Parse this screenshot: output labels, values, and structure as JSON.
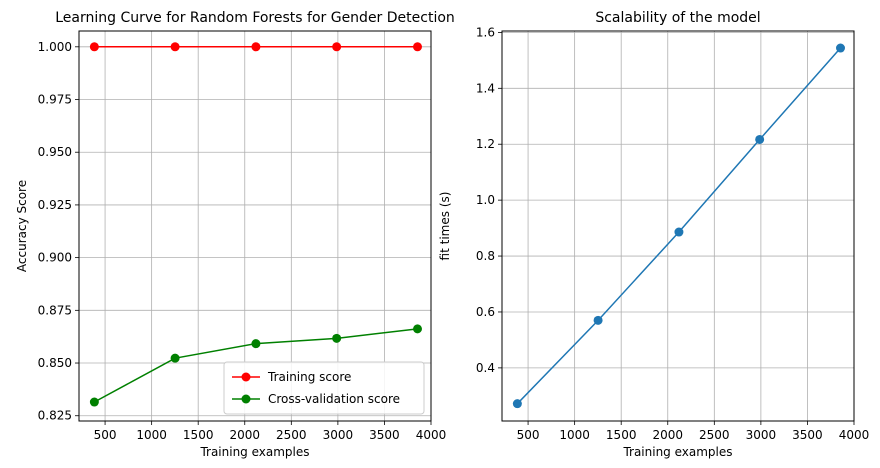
{
  "chart_data": [
    {
      "type": "line",
      "title": "Learning Curve for Random Forests for Gender Detection",
      "xlabel": "Training examples",
      "ylabel": "Accuracy Score",
      "xlim": [
        220,
        4000
      ],
      "ylim": [
        0.8225,
        1.0075
      ],
      "xticks": [
        500,
        1000,
        1500,
        2000,
        2500,
        3000,
        3500,
        4000
      ],
      "xtick_labels": [
        "500",
        "1000",
        "1500",
        "2000",
        "2500",
        "3000",
        "3500",
        "4000"
      ],
      "yticks": [
        0.825,
        0.85,
        0.875,
        0.9,
        0.925,
        0.95,
        0.975,
        1.0
      ],
      "ytick_labels": [
        "0.825",
        "0.850",
        "0.875",
        "0.900",
        "0.925",
        "0.950",
        "0.975",
        "1.000"
      ],
      "grid": true,
      "legend": "lower-right",
      "x": [
        385,
        1252,
        2120,
        2987,
        3855
      ],
      "series": [
        {
          "name": "Training score",
          "color": "#ff0000",
          "values": [
            1.0,
            1.0,
            1.0,
            1.0,
            1.0
          ]
        },
        {
          "name": "Cross-validation score",
          "color": "#008000",
          "values": [
            0.8315,
            0.8523,
            0.8592,
            0.8617,
            0.8662
          ]
        }
      ]
    },
    {
      "type": "line",
      "title": "Scalability of the model",
      "xlabel": "Training examples",
      "ylabel": "fit times (s)",
      "xlim": [
        220,
        4000
      ],
      "ylim": [
        0.21,
        1.605
      ],
      "xticks": [
        500,
        1000,
        1500,
        2000,
        2500,
        3000,
        3500,
        4000
      ],
      "xtick_labels": [
        "500",
        "1000",
        "1500",
        "2000",
        "2500",
        "3000",
        "3500",
        "4000"
      ],
      "yticks": [
        0.4,
        0.6,
        0.8,
        1.0,
        1.2,
        1.4,
        1.6
      ],
      "ytick_labels": [
        "0.4",
        "0.6",
        "0.8",
        "1.0",
        "1.2",
        "1.4",
        "1.6"
      ],
      "grid": true,
      "x": [
        385,
        1252,
        2120,
        2987,
        3855
      ],
      "series": [
        {
          "color": "#1f77b4",
          "values": [
            0.272,
            0.57,
            0.886,
            1.217,
            1.544
          ]
        }
      ]
    }
  ]
}
